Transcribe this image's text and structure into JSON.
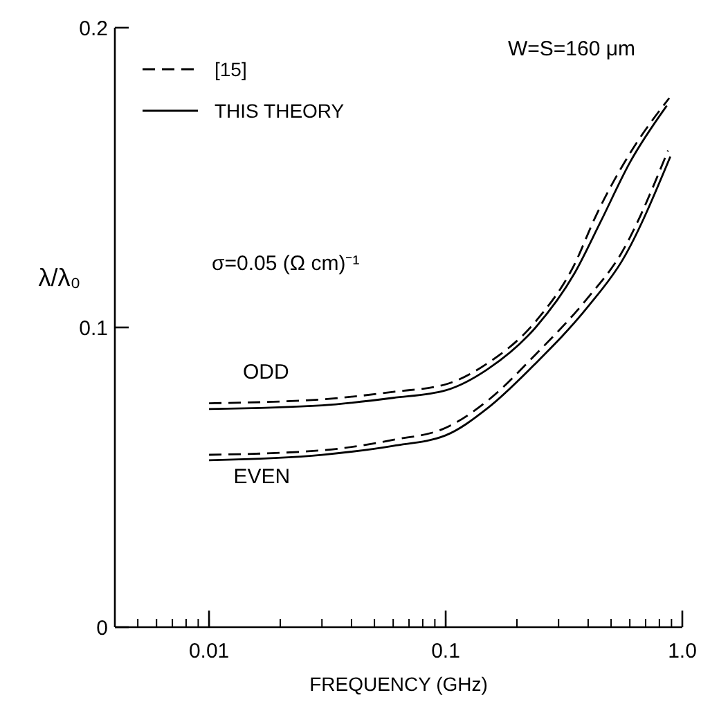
{
  "chart_data": {
    "type": "line",
    "xlabel": "FREQUENCY  (GHz)",
    "ylabel": "λ/λ₀",
    "log": "x",
    "xlim": [
      0.004,
      1
    ],
    "xticks": [
      0.01,
      0.1,
      {
        "value": 1,
        "label": "1.0"
      }
    ],
    "ylim": [
      0,
      0.2
    ],
    "yticks": [
      0,
      0.1,
      0.2
    ],
    "grid": false,
    "legend": "top left",
    "series": [
      {
        "name": "[15]",
        "color": "#000000",
        "line_style": "dashed",
        "x": [
          0.01,
          0.03,
          0.06,
          0.1,
          0.15,
          0.24,
          0.35,
          0.43,
          0.6,
          0.88
        ],
        "values": [
          0.0747,
          0.076,
          0.0785,
          0.081,
          0.088,
          0.102,
          0.121,
          0.137,
          0.158,
          0.1765
        ]
      },
      {
        "name": "THIS THEORY",
        "color": "#000000",
        "line_style": "solid",
        "x": [
          0.01,
          0.03,
          0.06,
          0.1,
          0.15,
          0.24,
          0.35,
          0.45,
          0.6,
          0.86
        ],
        "values": [
          0.0728,
          0.074,
          0.0765,
          0.079,
          0.086,
          0.1,
          0.118,
          0.135,
          0.155,
          0.174
        ]
      },
      {
        "color": "#000000",
        "line_style": "dashed",
        "x": [
          0.01,
          0.03,
          0.06,
          0.1,
          0.15,
          0.24,
          0.4,
          0.55,
          0.87
        ],
        "values": [
          0.0575,
          0.059,
          0.0625,
          0.0665,
          0.0755,
          0.091,
          0.11,
          0.1245,
          0.159
        ]
      },
      {
        "color": "#000000",
        "line_style": "solid",
        "x": [
          0.01,
          0.03,
          0.06,
          0.1,
          0.15,
          0.24,
          0.4,
          0.56,
          0.89
        ],
        "values": [
          0.0557,
          0.0575,
          0.0605,
          0.064,
          0.073,
          0.088,
          0.107,
          0.1226,
          0.157
        ]
      }
    ],
    "annotations": [
      "W=S=160 μm",
      "σ=0.05 (Ω cm)⁻¹",
      "ODD",
      "EVEN"
    ]
  }
}
